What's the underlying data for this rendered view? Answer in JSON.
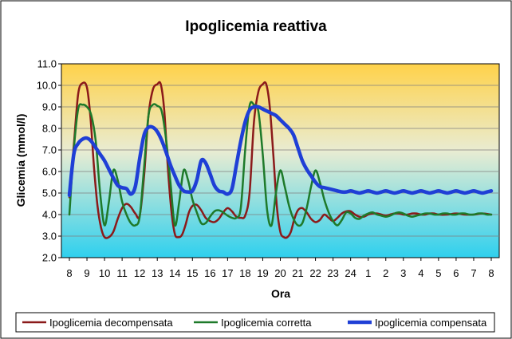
{
  "chart_data": {
    "type": "line",
    "title": "Ipoglicemia reattiva",
    "xlabel": "Ora",
    "ylabel": "Glicemia (mmol/l)",
    "ylim": [
      2.0,
      11.0
    ],
    "y_ticks": [
      "2.0",
      "3.0",
      "4.0",
      "5.0",
      "6.0",
      "7.0",
      "8.0",
      "9.0",
      "10.0",
      "11.0"
    ],
    "x_tick_labels": [
      "8",
      "9",
      "10",
      "11",
      "12",
      "13",
      "14",
      "15",
      "16",
      "17",
      "18",
      "19",
      "20",
      "21",
      "22",
      "23",
      "24",
      "1",
      "2",
      "3",
      "4",
      "5",
      "6",
      "7",
      "8"
    ],
    "x_range": [
      0,
      24
    ],
    "legend_position": "bottom",
    "background": "vertical gradient yellow (top) to cyan (bottom)",
    "series": [
      {
        "name": "Ipoglicemia decompensata",
        "color": "#8b1a1a",
        "x": [
          0,
          0.25,
          0.5,
          0.75,
          1,
          1.2,
          1.4,
          1.6,
          1.8,
          2,
          2.25,
          2.5,
          2.75,
          3,
          3.25,
          3.5,
          3.75,
          4,
          4.25,
          4.5,
          4.75,
          5,
          5.2,
          5.4,
          5.6,
          5.8,
          6,
          6.2,
          6.4,
          6.6,
          6.8,
          7,
          7.25,
          7.5,
          7.75,
          8,
          8.25,
          8.5,
          8.75,
          9,
          9.25,
          9.5,
          9.75,
          10,
          10.25,
          10.5,
          10.75,
          11,
          11.2,
          11.4,
          11.6,
          11.8,
          12,
          12.2,
          12.4,
          12.6,
          12.8,
          13,
          13.25,
          13.5,
          13.75,
          14,
          14.25,
          14.5,
          14.75,
          15,
          15.25,
          15.5,
          15.75,
          16,
          16.25,
          16.5,
          16.75,
          17,
          17.25,
          17.5,
          17.75,
          18,
          18.25,
          18.5,
          18.75,
          19,
          19.25,
          19.5,
          19.75,
          20,
          20.25,
          20.5,
          20.75,
          21,
          21.5,
          22,
          22.5,
          23,
          23.5,
          24
        ],
        "values": [
          4.8,
          7.2,
          9.6,
          10.1,
          9.9,
          8.5,
          6.2,
          4.4,
          3.4,
          2.95,
          2.95,
          3.2,
          3.8,
          4.3,
          4.5,
          4.35,
          4.05,
          3.95,
          5.8,
          8.6,
          9.8,
          10.05,
          10.05,
          8.8,
          6.2,
          4.2,
          3.1,
          2.95,
          3.05,
          3.5,
          4.1,
          4.4,
          4.45,
          4.2,
          3.85,
          3.7,
          3.65,
          3.8,
          4.1,
          4.3,
          4.15,
          3.9,
          3.85,
          3.95,
          5.0,
          8.3,
          9.7,
          10.05,
          10.05,
          9.0,
          6.8,
          4.4,
          3.2,
          2.95,
          2.95,
          3.2,
          3.8,
          4.2,
          4.3,
          4.1,
          3.8,
          3.65,
          3.75,
          4.0,
          3.85,
          3.7,
          3.85,
          4.05,
          4.15,
          4.15,
          4.0,
          3.9,
          3.9,
          4.0,
          4.05,
          4.05,
          4.0,
          3.95,
          4.0,
          4.05,
          4.05,
          4.0,
          4.0,
          4.05,
          4.05,
          4.0,
          4.0,
          4.05,
          4.05,
          4.0,
          4.0,
          4.05,
          4.0,
          4.0,
          4.05,
          4.0
        ]
      },
      {
        "name": "Ipoglicemia corretta",
        "color": "#1e7a2a",
        "x": [
          0,
          0.25,
          0.5,
          0.75,
          1,
          1.25,
          1.5,
          1.75,
          2,
          2.25,
          2.5,
          2.75,
          3,
          3.25,
          3.5,
          3.75,
          4,
          4.25,
          4.5,
          4.75,
          5,
          5.25,
          5.5,
          5.75,
          6,
          6.25,
          6.5,
          6.75,
          7,
          7.25,
          7.5,
          7.75,
          8,
          8.25,
          8.5,
          8.75,
          9,
          9.25,
          9.5,
          9.75,
          10,
          10.25,
          10.5,
          10.75,
          11,
          11.25,
          11.5,
          11.75,
          12,
          12.25,
          12.5,
          12.75,
          13,
          13.25,
          13.5,
          13.75,
          14,
          14.25,
          14.5,
          14.75,
          15,
          15.25,
          15.5,
          15.75,
          16,
          16.25,
          16.5,
          16.75,
          17,
          17.25,
          17.5,
          17.75,
          18,
          18.25,
          18.5,
          18.75,
          19,
          19.25,
          19.5,
          19.75,
          20,
          20.25,
          20.5,
          20.75,
          21,
          21.25,
          21.5,
          21.75,
          22,
          22.25,
          22.5,
          22.75,
          23,
          23.25,
          23.5,
          23.75,
          24
        ],
        "values": [
          4.0,
          7.0,
          8.9,
          9.1,
          9.0,
          8.6,
          7.4,
          5.0,
          3.5,
          4.6,
          6.05,
          5.6,
          4.6,
          4.0,
          3.6,
          3.5,
          3.9,
          6.2,
          8.6,
          9.1,
          9.05,
          8.8,
          7.5,
          5.5,
          3.5,
          4.6,
          6.05,
          5.6,
          4.7,
          4.1,
          3.6,
          3.6,
          3.9,
          4.15,
          4.2,
          4.1,
          3.95,
          3.85,
          3.85,
          4.3,
          7.0,
          9.05,
          9.1,
          8.8,
          6.8,
          4.2,
          3.5,
          5.0,
          6.05,
          5.3,
          4.4,
          3.8,
          3.5,
          3.6,
          4.3,
          5.3,
          6.05,
          5.5,
          4.7,
          4.1,
          3.7,
          3.5,
          3.75,
          4.1,
          4.05,
          3.85,
          3.8,
          3.95,
          4.05,
          4.1,
          4.0,
          3.95,
          3.9,
          3.95,
          4.05,
          4.1,
          4.05,
          3.95,
          3.9,
          3.95,
          4.0,
          4.05,
          4.05,
          4.0,
          4.0,
          4.05,
          4.05,
          4.0,
          4.0,
          4.05,
          4.05,
          4.0,
          4.0,
          4.05,
          4.05,
          4.0,
          4.0
        ]
      },
      {
        "name": "Ipoglicemia compensata",
        "color": "#1f3fd6",
        "x": [
          0,
          0.25,
          0.5,
          0.75,
          1,
          1.25,
          1.5,
          1.75,
          2,
          2.25,
          2.5,
          2.75,
          3,
          3.25,
          3.5,
          3.75,
          4,
          4.25,
          4.5,
          4.75,
          5,
          5.25,
          5.5,
          5.75,
          6,
          6.25,
          6.5,
          6.75,
          7,
          7.25,
          7.5,
          7.75,
          8,
          8.25,
          8.5,
          8.75,
          9,
          9.25,
          9.5,
          9.75,
          10,
          10.25,
          10.5,
          10.75,
          11,
          11.25,
          11.5,
          11.75,
          12,
          12.25,
          12.5,
          12.75,
          13,
          13.25,
          13.5,
          13.75,
          14,
          14.25,
          14.5,
          14.75,
          15,
          15.25,
          15.5,
          15.75,
          16,
          16.25,
          16.5,
          16.75,
          17,
          17.25,
          17.5,
          17.75,
          18,
          18.25,
          18.5,
          18.75,
          19,
          19.25,
          19.5,
          19.75,
          20,
          20.25,
          20.5,
          20.75,
          21,
          21.25,
          21.5,
          21.75,
          22,
          22.25,
          22.5,
          22.75,
          23,
          23.25,
          23.5,
          23.75,
          24
        ],
        "values": [
          4.9,
          6.8,
          7.3,
          7.5,
          7.55,
          7.4,
          7.1,
          6.8,
          6.5,
          6.1,
          5.7,
          5.35,
          5.25,
          5.2,
          4.95,
          5.3,
          6.6,
          7.7,
          8.05,
          8.05,
          7.85,
          7.45,
          6.9,
          6.3,
          5.8,
          5.35,
          5.1,
          5.05,
          5.1,
          5.6,
          6.5,
          6.4,
          5.9,
          5.35,
          5.1,
          5.05,
          4.95,
          5.2,
          6.3,
          7.4,
          8.3,
          8.85,
          9.0,
          9.0,
          8.9,
          8.8,
          8.7,
          8.6,
          8.4,
          8.2,
          8.0,
          7.7,
          7.1,
          6.5,
          6.1,
          5.8,
          5.5,
          5.3,
          5.25,
          5.2,
          5.15,
          5.1,
          5.05,
          5.05,
          5.1,
          5.05,
          5.0,
          5.05,
          5.1,
          5.05,
          5.0,
          5.05,
          5.1,
          5.05,
          5.0,
          5.05,
          5.1,
          5.05,
          5.0,
          5.05,
          5.1,
          5.05,
          5.0,
          5.05,
          5.1,
          5.05,
          5.0,
          5.05,
          5.1,
          5.05,
          5.0,
          5.05,
          5.1,
          5.05,
          5.0,
          5.05,
          5.1
        ]
      }
    ]
  }
}
